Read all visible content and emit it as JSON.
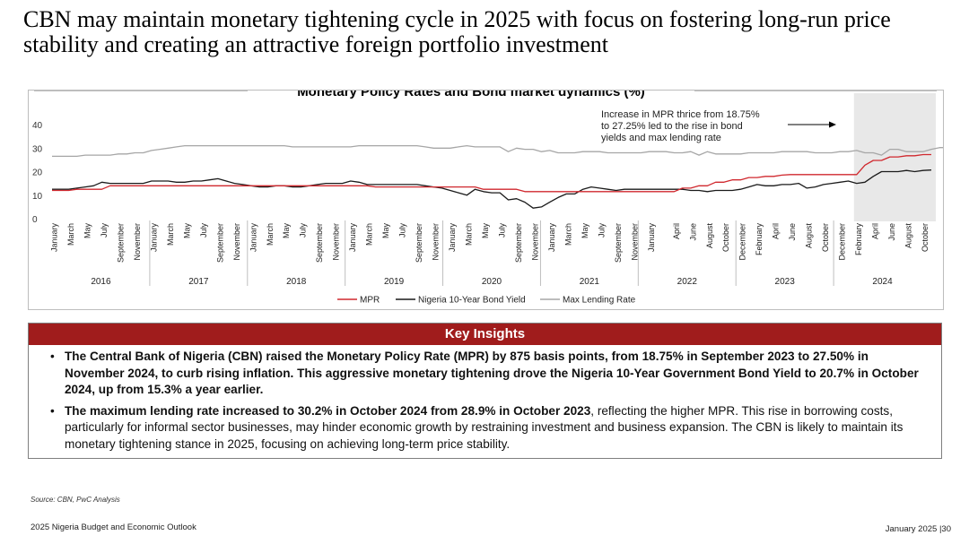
{
  "page": {
    "title": "CBN may maintain monetary tightening cycle in 2025 with focus on fostering long-run price stability and creating an attractive foreign portfolio investment"
  },
  "chart_data": {
    "type": "line",
    "title": "Monetary Policy Rates and Bond market dynamics (%)",
    "xlabel": "",
    "ylabel": "",
    "ylim": [
      0,
      40
    ],
    "yticks": [
      0,
      10,
      20,
      30,
      40
    ],
    "grid": false,
    "legend_position": "bottom",
    "years": [
      "2016",
      "2017",
      "2018",
      "2019",
      "2020",
      "2021",
      "2022",
      "2023",
      "2024"
    ],
    "x_tick_labels": [
      [
        "January",
        "March",
        "May",
        "July",
        "September",
        "November"
      ],
      [
        "January",
        "March",
        "May",
        "July",
        "September",
        "November"
      ],
      [
        "January",
        "March",
        "May",
        "July",
        "September",
        "November"
      ],
      [
        "January",
        "March",
        "May",
        "July",
        "September",
        "November"
      ],
      [
        "January",
        "March",
        "May",
        "July",
        "September",
        "November"
      ],
      [
        "January",
        "March",
        "May",
        "July",
        "September",
        "November"
      ],
      [
        "January",
        "April",
        "June",
        "August",
        "October",
        "December"
      ],
      [
        "February",
        "April",
        "June",
        "August",
        "October",
        "December"
      ],
      [
        "February",
        "April",
        "June",
        "August",
        "October"
      ]
    ],
    "annotation": "Increase in MPR thrice from 18.75% to 27.25% led to the rise in bond yields and max lending rate",
    "highlight_period": [
      "2024-01",
      "2024-10"
    ],
    "series": [
      {
        "name": "MPR",
        "color": "#d0282e",
        "values": [
          12,
          12,
          12,
          12.5,
          12.5,
          12.5,
          12.5,
          14,
          14,
          14,
          14,
          14,
          14,
          14,
          14,
          14,
          14,
          14,
          14,
          14,
          14,
          14,
          14,
          14,
          14,
          14,
          14,
          14,
          14,
          14,
          14,
          14,
          14,
          14,
          14,
          14,
          14,
          14,
          14,
          13.5,
          13.5,
          13.5,
          13.5,
          13.5,
          13.5,
          13.5,
          13.5,
          13.5,
          13.5,
          13.5,
          13.5,
          13.5,
          12.5,
          12.5,
          12.5,
          12.5,
          12.5,
          11.5,
          11.5,
          11.5,
          11.5,
          11.5,
          11.5,
          11.5,
          11.5,
          11.5,
          11.5,
          11.5,
          11.5,
          11.5,
          11.5,
          11.5,
          11.5,
          11.5,
          11.5,
          11.5,
          13,
          13,
          14,
          14,
          15.5,
          15.5,
          16.5,
          16.5,
          17.5,
          17.5,
          18,
          18,
          18.5,
          18.75,
          18.75,
          18.75,
          18.75,
          18.75,
          18.75,
          18.75,
          18.75,
          18.75,
          22.75,
          24.75,
          24.75,
          26.25,
          26.25,
          26.75,
          26.75,
          27.25,
          27.25
        ]
      },
      {
        "name": "Nigeria 10-Year Bond Yield",
        "color": "#1a1a1a",
        "values": [
          12.5,
          12.5,
          12.5,
          13,
          13.5,
          14,
          15.5,
          15,
          15,
          15,
          15,
          15,
          16,
          16,
          16,
          15.5,
          15.5,
          16,
          16,
          16.5,
          17,
          16,
          15,
          14.5,
          14,
          13.5,
          13.5,
          14,
          14,
          13.5,
          13.5,
          14,
          14.5,
          15,
          15,
          15,
          16,
          15.5,
          14.5,
          14.5,
          14.5,
          14.5,
          14.5,
          14.5,
          14.5,
          14,
          13.5,
          13,
          12,
          11,
          10,
          12.5,
          11.5,
          11,
          11,
          8,
          8.5,
          7,
          4.5,
          5,
          7,
          9,
          10.5,
          10.5,
          12.5,
          13.5,
          13,
          12.5,
          12,
          12.5,
          12.5,
          12.5,
          12.5,
          12.5,
          12.5,
          12.5,
          12.5,
          12,
          12,
          11.5,
          12,
          12,
          12,
          12.5,
          13.5,
          14.5,
          14,
          14,
          14.5,
          14.5,
          15,
          13,
          13.5,
          14.5,
          15,
          15.5,
          16,
          15,
          15.5,
          18,
          20,
          20,
          20,
          20.5,
          20,
          20.5,
          20.7
        ]
      },
      {
        "name": "Max Lending Rate",
        "color": "#a6a6a6",
        "values": [
          26.5,
          26.5,
          26.5,
          26.5,
          27,
          27,
          27,
          27,
          27.5,
          27.5,
          28,
          28,
          29,
          29.5,
          30,
          30.5,
          31,
          31,
          31,
          31,
          31,
          31,
          31,
          31,
          31,
          31,
          31,
          31,
          31,
          30.5,
          30.5,
          30.5,
          30.5,
          30.5,
          30.5,
          30.5,
          30.5,
          31,
          31,
          31,
          31,
          31,
          31,
          31,
          31,
          30.5,
          30,
          30,
          30,
          30.5,
          31,
          30.5,
          30.5,
          30.5,
          30.5,
          28.5,
          30,
          29.5,
          29.5,
          28.5,
          29,
          28,
          28,
          28,
          28.5,
          28.5,
          28.5,
          28,
          28,
          28,
          28,
          28,
          28.5,
          28.5,
          28.5,
          28,
          28,
          28.5,
          27,
          28.5,
          27.5,
          27.5,
          27.5,
          27.5,
          28,
          28,
          28,
          28,
          28.5,
          28.5,
          28.5,
          28.5,
          28,
          28,
          28,
          28.5,
          28.5,
          29,
          28,
          28,
          27,
          29.5,
          29.5,
          28.5,
          28.5,
          28.5,
          29.5,
          30.2,
          30.2
        ]
      }
    ]
  },
  "insights": {
    "header": "Key Insights",
    "bullet1": "The Central Bank of Nigeria (CBN) raised the Monetary Policy Rate (MPR) by 875 basis points, from 18.75% in September 2023 to 27.50% in November 2024, to curb rising inflation. This aggressive monetary tightening drove the Nigeria 10-Year Government Bond Yield to 20.7% in October 2024, up from 15.3% a year earlier.",
    "bullet2_bold": "The maximum lending rate increased to 30.2% in October 2024 from 28.9% in October 2023",
    "bullet2_rest": ", reflecting the higher MPR. This rise in borrowing costs, particularly for informal sector businesses, may hinder economic growth by restraining investment and business expansion. The CBN is likely to maintain its monetary tightening stance in 2025, focusing on achieving long-term price stability."
  },
  "footer": {
    "source": "Source: CBN,  PwC Analysis",
    "left": "2025 Nigeria Budget and Economic Outlook",
    "right": "January 2025 |30"
  }
}
